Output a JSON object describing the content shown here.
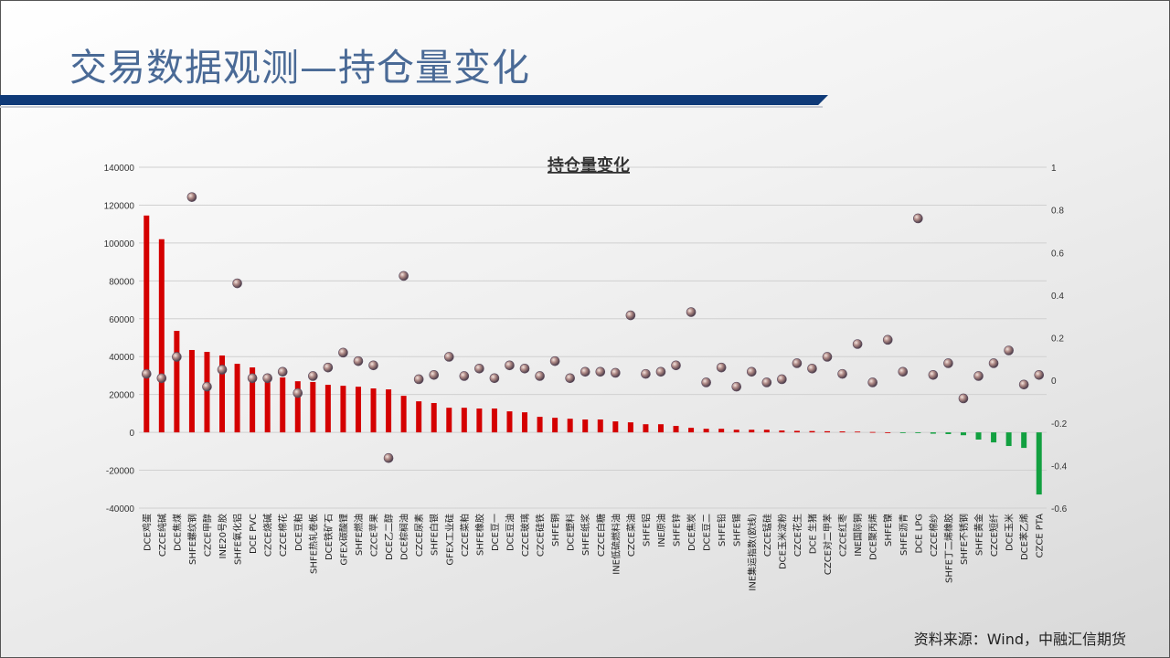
{
  "page_title": "交易数据观测—持仓量变化",
  "source": "资料来源：Wind，中融汇信期货",
  "colors": {
    "title": "#4a6a96",
    "band": "#0f3a78",
    "positive_bar": "#d40000",
    "negative_bar": "#12a040",
    "marker": "#9a7a7a"
  },
  "chart_data": {
    "type": "bar",
    "title": "持仓量变化",
    "categories": [
      "DCE鸡蛋",
      "CZCE纯碱",
      "DCE焦煤",
      "SHFE螺纹钢",
      "CZCE甲醇",
      "INE20号胶",
      "SHFE氧化铝",
      "DCE PVC",
      "CZCE烧碱",
      "CZCE棉花",
      "DCE豆粕",
      "SHFE热轧卷板",
      "DCE铁矿石",
      "GFEX碳酸锂",
      "SHFE燃油",
      "CZCE苹果",
      "DCE乙二醇",
      "DCE棕榈油",
      "CZCE尿素",
      "SHFE白银",
      "GFEX工业硅",
      "CZCE菜粕",
      "SHFE橡胶",
      "DCE豆一",
      "DCE豆油",
      "CZCE玻璃",
      "CZCE硅铁",
      "SHFE铜",
      "DCE塑料",
      "SHFE纸浆",
      "CZCE白糖",
      "INE低硫燃料油",
      "CZCE菜油",
      "SHFE铝",
      "INE原油",
      "SHFE锌",
      "DCE焦炭",
      "DCE豆二",
      "SHFE铅",
      "SHFE锡",
      "INE集运指数(欧线)",
      "CZCE锰硅",
      "DCE玉米淀粉",
      "CZCE花生",
      "DCE 生猪",
      "CZCE对二甲苯",
      "CZCE红枣",
      "INE国际铜",
      "DCE聚丙烯",
      "SHFE镍",
      "SHFE沥青",
      "DCE LPG",
      "CZCE棉纱",
      "SHFE丁二烯橡胶",
      "SHFE不锈钢",
      "SHFE黄金",
      "CZCE短纤",
      "DCE玉米",
      "DCE苯乙烯",
      "CZCE PTA"
    ],
    "series": [
      {
        "kind": "bar",
        "axis": "left",
        "values": [
          114500,
          102000,
          53600,
          43500,
          42500,
          40600,
          36200,
          34300,
          30400,
          29000,
          27000,
          26600,
          25100,
          24600,
          24100,
          23200,
          22700,
          19300,
          16400,
          15500,
          13000,
          13000,
          12600,
          12600,
          11100,
          10600,
          8200,
          7700,
          7200,
          6800,
          6800,
          5800,
          5300,
          4300,
          4300,
          3400,
          2400,
          1900,
          1900,
          1400,
          1400,
          1400,
          1000,
          800,
          700,
          600,
          500,
          400,
          200,
          0,
          -200,
          -400,
          -700,
          -900,
          -1500,
          -3800,
          -5300,
          -7200,
          -8200,
          -32800
        ]
      },
      {
        "kind": "scatter",
        "axis": "right",
        "values": [
          0.03,
          0.01,
          0.11,
          0.86,
          -0.03,
          0.05,
          0.455,
          0.01,
          0.01,
          0.04,
          -0.06,
          0.02,
          0.06,
          0.13,
          0.09,
          0.07,
          -0.365,
          0.49,
          0.005,
          0.025,
          0.11,
          0.02,
          0.055,
          0.01,
          0.07,
          0.055,
          0.02,
          0.09,
          0.01,
          0.04,
          0.04,
          0.035,
          0.305,
          0.03,
          0.04,
          0.07,
          0.32,
          -0.01,
          0.06,
          -0.03,
          0.04,
          -0.01,
          0.005,
          0.08,
          0.055,
          0.11,
          0.03,
          0.17,
          -0.01,
          0.19,
          0.04,
          0.76,
          0.025,
          0.08,
          -0.085,
          0.02,
          0.08,
          0.14,
          -0.02,
          0.025
        ]
      }
    ],
    "left_axis": {
      "range": [
        -40000,
        140000
      ],
      "ticks": [
        "140000",
        "120000",
        "100000",
        "80000",
        "60000",
        "40000",
        "20000",
        "0",
        "-20000",
        "-40000"
      ]
    },
    "right_axis": {
      "range": [
        -0.6,
        1
      ],
      "ticks": [
        "1",
        "0.8",
        "0.6",
        "0.4",
        "0.2",
        "0",
        "-0.2",
        "-0.4",
        "-0.6"
      ]
    },
    "grid": true,
    "legend": "none"
  }
}
